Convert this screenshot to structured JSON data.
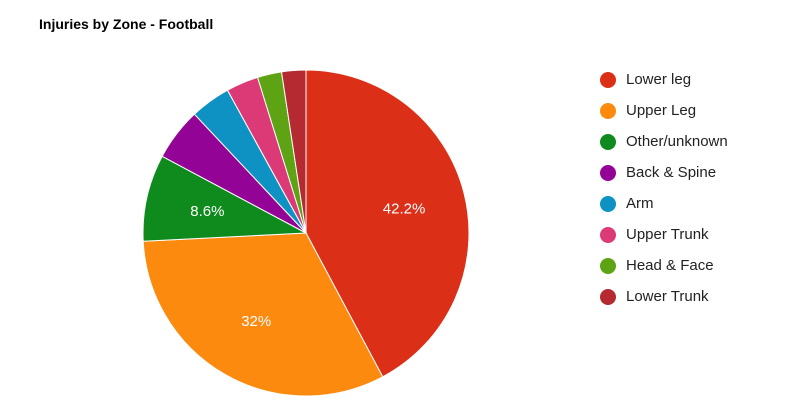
{
  "chart_data": {
    "type": "pie",
    "title": "Injuries by Zone - Football",
    "categories": [
      "Lower leg",
      "Upper Leg",
      "Other/unknown",
      "Back & Spine",
      "Arm",
      "Upper Trunk",
      "Head & Face",
      "Lower Trunk"
    ],
    "values": [
      42.2,
      32,
      8.6,
      5.2,
      4.0,
      3.2,
      2.4,
      2.4
    ],
    "colors": [
      "#dc2f18",
      "#fb8a0f",
      "#0f8a1d",
      "#930396",
      "#0e92c3",
      "#dc3a77",
      "#5da314",
      "#b52a31"
    ],
    "data_labels": [
      "42.2%",
      "32%",
      "8.6%",
      "",
      "",
      "",
      "",
      ""
    ],
    "legend_position": "right"
  }
}
